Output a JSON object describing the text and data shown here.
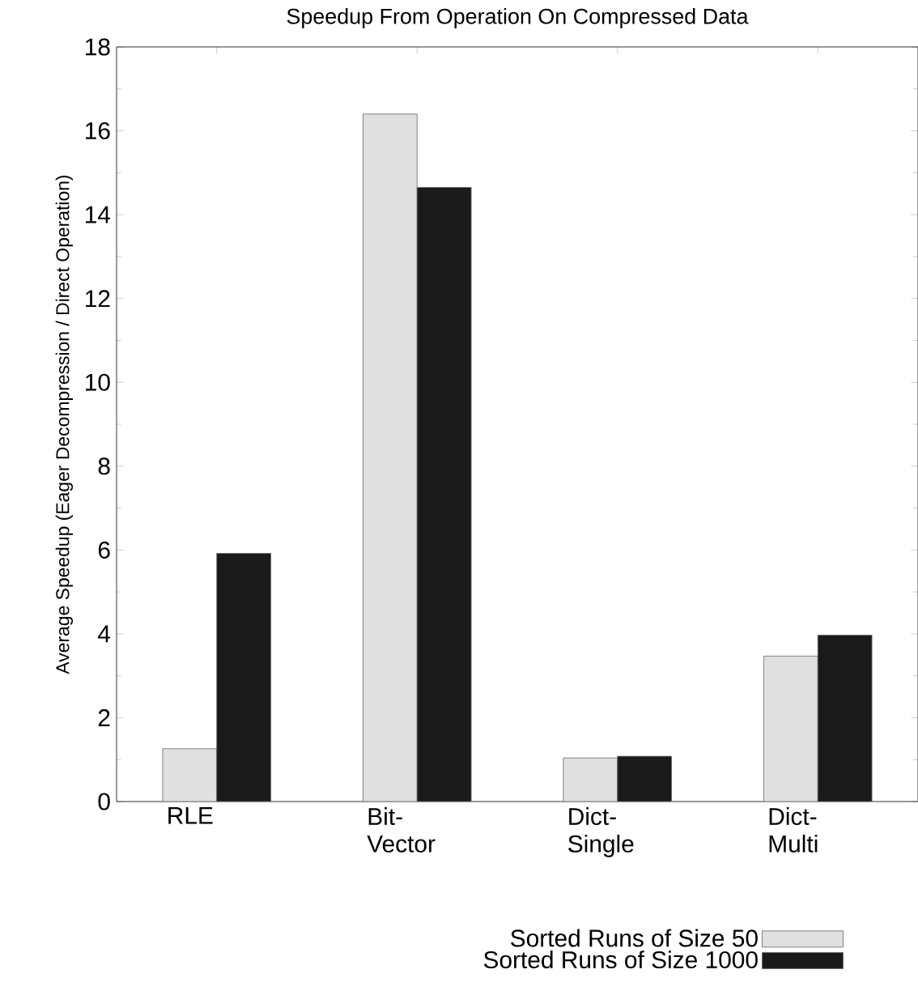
{
  "chart_data": {
    "type": "bar",
    "title": "Speedup From Operation On Compressed Data",
    "ylabel": "Average Speedup (Eager Decompression / Direct Operation)",
    "categories": [
      "RLE",
      "Bit-Vector",
      "Dict-Single",
      "Dict-Multi"
    ],
    "series": [
      {
        "name": "Sorted Runs of Size 50",
        "color": "#e0e0e0",
        "values": [
          1.26,
          16.4,
          1.04,
          3.47
        ]
      },
      {
        "name": "Sorted Runs of Size 1000",
        "color": "#1a1a1a",
        "values": [
          5.92,
          14.65,
          1.08,
          3.97
        ]
      }
    ],
    "ylim": [
      0,
      18
    ],
    "yticks": [
      0,
      2,
      4,
      6,
      8,
      10,
      12,
      14,
      16,
      18
    ],
    "grid": false,
    "legend": "bottom"
  }
}
